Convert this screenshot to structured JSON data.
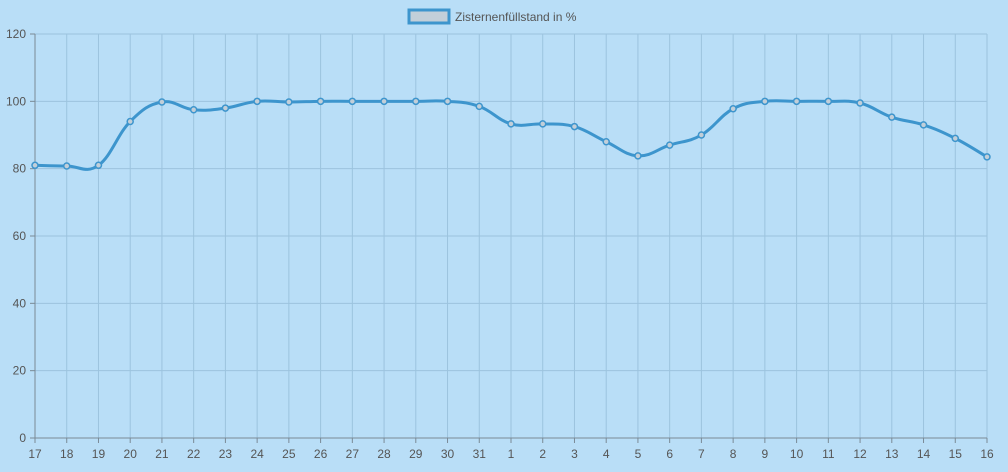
{
  "chart_data": {
    "type": "line",
    "title": "",
    "xlabel": "",
    "ylabel": "",
    "categories": [
      "17",
      "18",
      "19",
      "20",
      "21",
      "22",
      "23",
      "24",
      "25",
      "26",
      "27",
      "28",
      "29",
      "30",
      "31",
      "1",
      "2",
      "3",
      "4",
      "5",
      "6",
      "7",
      "8",
      "9",
      "10",
      "11",
      "12",
      "13",
      "14",
      "15",
      "16"
    ],
    "series": [
      {
        "name": "Zisternenfüllstand in %",
        "values": [
          81,
          80.8,
          81,
          94,
          99.8,
          97.5,
          98,
          100,
          99.8,
          100,
          100,
          100,
          100,
          100,
          98.5,
          93.3,
          93.3,
          92.5,
          88,
          83.8,
          87,
          90,
          97.8,
          100,
          100,
          100,
          99.5,
          95.3,
          93,
          89,
          83.5
        ],
        "color": "#3d95cd"
      }
    ],
    "ylim": [
      0,
      120
    ],
    "yticks": [
      0,
      20,
      40,
      60,
      80,
      100,
      120
    ],
    "grid": true,
    "legend": "top-center"
  },
  "colors": {
    "background": "#b9def7",
    "grid": "#9cc3de",
    "axis": "#7a8a96",
    "line": "#3d95cd",
    "legend_fill": "#c2cfd9"
  }
}
